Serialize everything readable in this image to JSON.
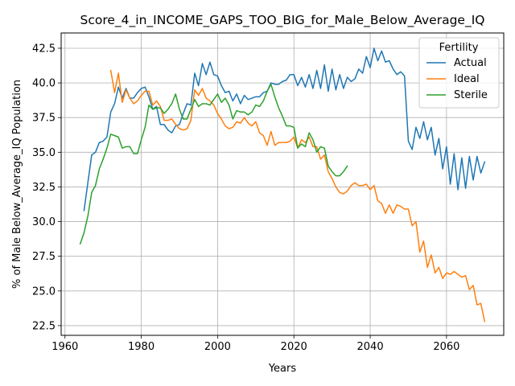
{
  "chart_data": {
    "type": "line",
    "title": "Score_4_in_INCOME_GAPS_TOO_BIG_for_Male_Below_Average_IQ",
    "xlabel": "Years",
    "ylabel": "% of Male Below_Average_IQ Population",
    "xlim": [
      1959,
      2075
    ],
    "ylim": [
      21.8,
      43.6
    ],
    "xticks": [
      1960,
      1980,
      2000,
      2020,
      2040,
      2060
    ],
    "yticks": [
      22.5,
      25.0,
      27.5,
      30.0,
      32.5,
      35.0,
      37.5,
      40.0,
      42.5
    ],
    "ytick_labels": [
      "22.5",
      "25.0",
      "27.5",
      "30.0",
      "32.5",
      "35.0",
      "37.5",
      "40.0",
      "42.5"
    ],
    "grid": true,
    "legend": {
      "title": "Fertility",
      "position": "top-right"
    },
    "series": [
      {
        "name": "Actual",
        "color": "#1f77b4",
        "x": [
          1965,
          1966,
          1967,
          1968,
          1969,
          1970,
          1971,
          1972,
          1973,
          1974,
          1975,
          1976,
          1977,
          1978,
          1979,
          1980,
          1981,
          1982,
          1983,
          1984,
          1985,
          1986,
          1987,
          1988,
          1989,
          1990,
          1991,
          1992,
          1993,
          1994,
          1995,
          1996,
          1997,
          1998,
          1999,
          2000,
          2001,
          2002,
          2003,
          2004,
          2005,
          2006,
          2007,
          2008,
          2009,
          2010,
          2011,
          2012,
          2013,
          2014,
          2015,
          2016,
          2017,
          2018,
          2019,
          2020,
          2021,
          2022,
          2023,
          2024,
          2025,
          2026,
          2027,
          2028,
          2029,
          2030,
          2031,
          2032,
          2033,
          2034,
          2035,
          2036,
          2037,
          2038,
          2039,
          2040,
          2041,
          2042,
          2043,
          2044,
          2045,
          2046,
          2047,
          2048,
          2049,
          2050,
          2051,
          2052,
          2053,
          2054,
          2055,
          2056,
          2057,
          2058,
          2059,
          2060,
          2061,
          2062,
          2063,
          2064,
          2065,
          2066,
          2067,
          2068,
          2069,
          2070
        ],
        "y": [
          30.8,
          32.8,
          34.8,
          35.0,
          35.7,
          35.8,
          36.1,
          37.9,
          38.5,
          39.7,
          38.9,
          39.6,
          38.9,
          38.9,
          39.3,
          39.6,
          39.7,
          39.0,
          38.1,
          38.3,
          37.0,
          37.0,
          36.6,
          36.4,
          36.9,
          37.0,
          37.8,
          38.5,
          38.4,
          40.7,
          39.8,
          41.4,
          40.6,
          41.5,
          40.6,
          40.5,
          39.8,
          39.3,
          39.4,
          38.7,
          39.2,
          38.5,
          39.1,
          38.8,
          38.9,
          39.0,
          39.0,
          39.3,
          39.4,
          40.0,
          39.9,
          39.9,
          40.1,
          40.2,
          40.6,
          40.6,
          39.8,
          40.4,
          39.7,
          40.6,
          39.6,
          40.9,
          39.6,
          41.3,
          39.4,
          41.0,
          39.5,
          40.6,
          39.6,
          40.4,
          40.1,
          40.3,
          41.0,
          40.7,
          41.9,
          41.1,
          42.5,
          41.6,
          42.3,
          41.5,
          41.6,
          41.0,
          40.6,
          40.8,
          40.5,
          35.8,
          35.2,
          36.8,
          36.0,
          37.2,
          35.9,
          36.8,
          34.8,
          36.0,
          33.8,
          35.4,
          32.7,
          34.9,
          32.3,
          34.6,
          32.4,
          34.7,
          33.0,
          34.7,
          33.5,
          34.3
        ]
      },
      {
        "name": "Ideal",
        "color": "#ff7f0e",
        "x": [
          1972,
          1973,
          1974,
          1975,
          1976,
          1977,
          1978,
          1979,
          1980,
          1981,
          1982,
          1983,
          1984,
          1985,
          1986,
          1987,
          1988,
          1989,
          1990,
          1991,
          1992,
          1993,
          1994,
          1995,
          1996,
          1997,
          1998,
          1999,
          2000,
          2001,
          2002,
          2003,
          2004,
          2005,
          2006,
          2007,
          2008,
          2009,
          2010,
          2011,
          2012,
          2013,
          2014,
          2015,
          2016,
          2017,
          2018,
          2019,
          2020,
          2021,
          2022,
          2023,
          2024,
          2025,
          2026,
          2027,
          2028,
          2029,
          2030,
          2031,
          2032,
          2033,
          2034,
          2035,
          2036,
          2037,
          2038,
          2039,
          2040,
          2041,
          2042,
          2043,
          2044,
          2045,
          2046,
          2047,
          2048,
          2049,
          2050,
          2051,
          2052,
          2053,
          2054,
          2055,
          2056,
          2057,
          2058,
          2059,
          2060,
          2061,
          2062,
          2063,
          2064,
          2065,
          2066,
          2067,
          2068,
          2069,
          2070
        ],
        "y": [
          40.9,
          39.3,
          40.7,
          38.6,
          39.5,
          38.9,
          38.5,
          38.7,
          39.1,
          39.4,
          39.4,
          38.4,
          38.7,
          38.3,
          37.3,
          37.3,
          37.4,
          37.0,
          36.7,
          36.6,
          36.7,
          37.3,
          39.5,
          39.1,
          39.6,
          38.9,
          38.7,
          38.4,
          37.8,
          37.4,
          36.9,
          36.7,
          36.8,
          37.2,
          37.1,
          37.5,
          37.1,
          36.9,
          37.2,
          36.4,
          36.2,
          35.5,
          36.5,
          35.5,
          35.7,
          35.7,
          35.7,
          35.8,
          36.1,
          35.3,
          35.9,
          35.7,
          36.1,
          35.4,
          35.4,
          34.5,
          34.8,
          33.6,
          33.1,
          32.5,
          32.1,
          32.0,
          32.2,
          32.6,
          32.8,
          32.6,
          32.6,
          32.7,
          32.3,
          32.6,
          31.5,
          31.3,
          30.6,
          31.2,
          30.6,
          31.2,
          31.1,
          30.9,
          30.9,
          29.7,
          30.0,
          27.8,
          28.6,
          26.7,
          27.6,
          26.3,
          26.7,
          25.9,
          26.3,
          26.2,
          26.4,
          26.2,
          26.0,
          26.1,
          25.1,
          25.4,
          24.0,
          24.1,
          22.8
        ]
      },
      {
        "name": "Sterile",
        "color": "#2ca02c",
        "x": [
          1964,
          1965,
          1966,
          1967,
          1968,
          1969,
          1970,
          1971,
          1972,
          1973,
          1974,
          1975,
          1976,
          1977,
          1978,
          1979,
          1980,
          1981,
          1982,
          1983,
          1984,
          1985,
          1986,
          1987,
          1988,
          1989,
          1990,
          1991,
          1992,
          1993,
          1994,
          1995,
          1996,
          1997,
          1998,
          1999,
          2000,
          2001,
          2002,
          2003,
          2004,
          2005,
          2006,
          2007,
          2008,
          2009,
          2010,
          2011,
          2012,
          2013,
          2014,
          2015,
          2016,
          2017,
          2018,
          2019,
          2020,
          2021,
          2022,
          2023,
          2024,
          2025,
          2026,
          2027,
          2028,
          2029,
          2030,
          2031,
          2032,
          2033,
          2034
        ],
        "y": [
          28.4,
          29.2,
          30.4,
          32.1,
          32.6,
          33.8,
          34.5,
          35.3,
          36.3,
          36.2,
          36.1,
          35.3,
          35.4,
          35.4,
          34.9,
          34.9,
          35.9,
          36.8,
          38.4,
          38.1,
          38.2,
          38.2,
          37.8,
          38.1,
          38.5,
          39.2,
          38.1,
          37.4,
          37.4,
          38.1,
          38.8,
          38.3,
          38.5,
          38.5,
          38.4,
          38.8,
          39.2,
          38.6,
          38.9,
          38.4,
          37.4,
          38.0,
          37.9,
          37.9,
          37.7,
          37.9,
          38.4,
          38.3,
          38.7,
          39.4,
          39.9,
          39.0,
          38.2,
          37.6,
          36.9,
          36.9,
          36.8,
          35.3,
          35.6,
          35.4,
          36.4,
          35.9,
          35.0,
          35.4,
          35.3,
          34.0,
          33.6,
          33.3,
          33.3,
          33.6,
          34.0
        ]
      }
    ]
  }
}
